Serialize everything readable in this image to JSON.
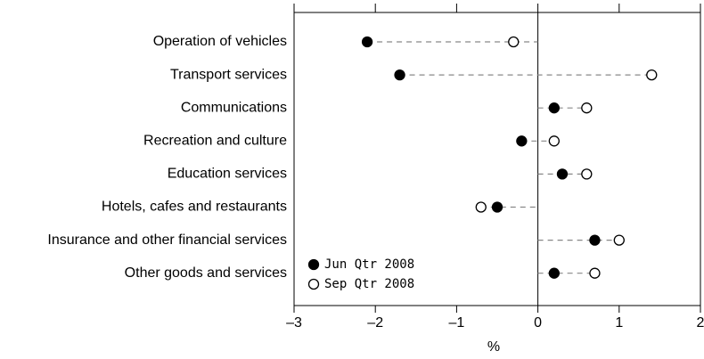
{
  "chart_data": {
    "type": "dot",
    "categories": [
      "Operation of vehicles",
      "Transport services",
      "Communications",
      "Recreation and culture",
      "Education services",
      "Hotels, cafes and restaurants",
      "Insurance and other financial services",
      "Other goods and services"
    ],
    "series": [
      {
        "name": "Jun Qtr 2008",
        "color": "#000000",
        "values": [
          -2.1,
          -1.7,
          0.2,
          -0.2,
          0.3,
          -0.5,
          0.7,
          0.2
        ]
      },
      {
        "name": "Sep Qtr 2008",
        "color": "#ffffff",
        "values": [
          -0.3,
          1.4,
          0.6,
          0.2,
          0.6,
          -0.7,
          1.0,
          0.7
        ]
      }
    ],
    "xlabel": "%",
    "xlim": [
      -3,
      2
    ],
    "xticks": [
      {
        "value": -3,
        "label": "–3"
      },
      {
        "value": -2,
        "label": "–2"
      },
      {
        "value": -1,
        "label": "–1"
      },
      0,
      1,
      2
    ],
    "legend": "lower left"
  }
}
